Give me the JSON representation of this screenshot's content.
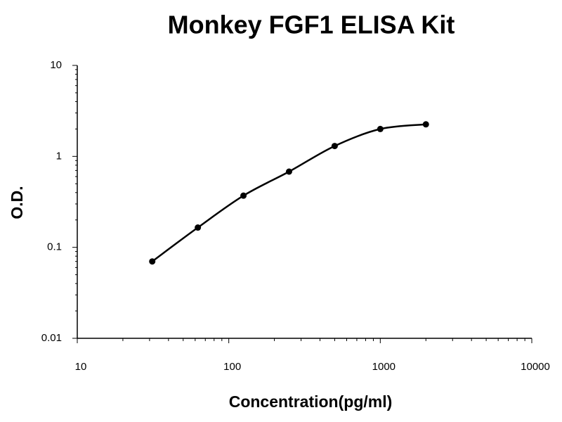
{
  "chart_data": {
    "type": "scatter",
    "title": "Monkey FGF1 ELISA Kit",
    "xlabel": "Concentration(pg/ml)",
    "ylabel": "O.D.",
    "x": [
      31.25,
      62.5,
      125,
      250,
      500,
      1000,
      2000
    ],
    "series": [
      {
        "color": "#000000",
        "values": [
          0.07,
          0.165,
          0.37,
          0.68,
          1.3,
          2.0,
          2.25
        ]
      }
    ],
    "xlim": [
      10,
      10000
    ],
    "ylim": [
      0.01,
      10
    ],
    "xticks": [
      10,
      100,
      1000,
      10000
    ],
    "yticks": [
      0.01,
      0.1,
      1,
      10
    ],
    "xscale": "log",
    "yscale": "log",
    "fit_line": true
  }
}
